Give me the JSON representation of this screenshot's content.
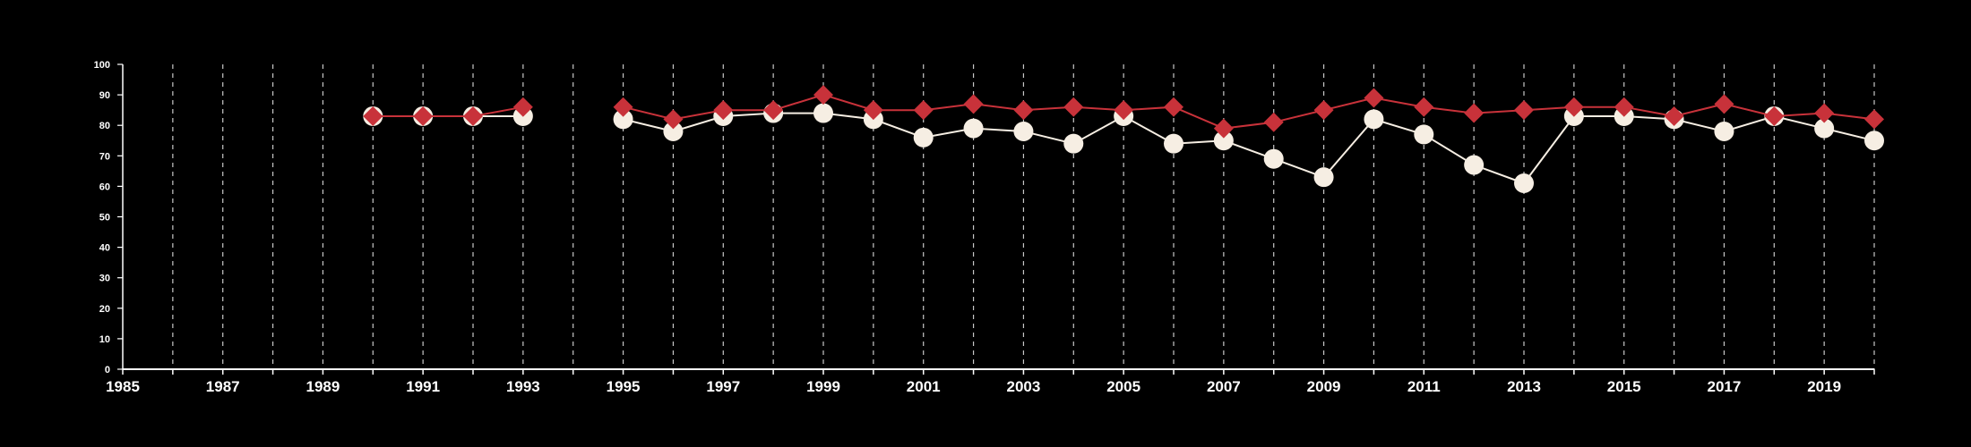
{
  "chart_data": {
    "type": "line",
    "title": "",
    "xlabel": "",
    "ylabel": "",
    "xlim": [
      1985,
      2020
    ],
    "ylim": [
      0,
      100
    ],
    "x_ticks": [
      1985,
      1987,
      1989,
      1991,
      1993,
      1995,
      1997,
      1999,
      2001,
      2003,
      2005,
      2007,
      2009,
      2011,
      2013,
      2015,
      2017,
      2019
    ],
    "y_ticks": [
      0,
      10,
      20,
      30,
      40,
      50,
      60,
      70,
      80,
      90,
      100
    ],
    "grid": "vertical dashed lines at every year",
    "series": [
      {
        "marker": "circle",
        "color": "#f6eee3",
        "points": [
          [
            1990,
            83
          ],
          [
            1991,
            83
          ],
          [
            1992,
            83
          ],
          [
            1993,
            83
          ],
          [
            1995,
            82
          ],
          [
            1996,
            78
          ],
          [
            1997,
            83
          ],
          [
            1998,
            84
          ],
          [
            1999,
            84
          ],
          [
            2000,
            82
          ],
          [
            2001,
            76
          ],
          [
            2002,
            79
          ],
          [
            2003,
            78
          ],
          [
            2004,
            74
          ],
          [
            2005,
            83
          ],
          [
            2006,
            74
          ],
          [
            2007,
            75
          ],
          [
            2008,
            69
          ],
          [
            2009,
            63
          ],
          [
            2010,
            82
          ],
          [
            2011,
            77
          ],
          [
            2012,
            67
          ],
          [
            2013,
            61
          ],
          [
            2014,
            83
          ],
          [
            2015,
            83
          ],
          [
            2016,
            82
          ],
          [
            2017,
            78
          ],
          [
            2018,
            83
          ],
          [
            2019,
            79
          ],
          [
            2020,
            75
          ]
        ]
      },
      {
        "marker": "diamond",
        "color": "#c8323a",
        "points": [
          [
            1990,
            83
          ],
          [
            1991,
            83
          ],
          [
            1992,
            83
          ],
          [
            1993,
            86
          ],
          [
            1995,
            86
          ],
          [
            1996,
            82
          ],
          [
            1997,
            85
          ],
          [
            1998,
            85
          ],
          [
            1999,
            90
          ],
          [
            2000,
            85
          ],
          [
            2001,
            85
          ],
          [
            2002,
            87
          ],
          [
            2003,
            85
          ],
          [
            2004,
            86
          ],
          [
            2005,
            85
          ],
          [
            2006,
            86
          ],
          [
            2007,
            79
          ],
          [
            2008,
            81
          ],
          [
            2009,
            85
          ],
          [
            2010,
            89
          ],
          [
            2011,
            86
          ],
          [
            2012,
            84
          ],
          [
            2013,
            85
          ],
          [
            2014,
            86
          ],
          [
            2015,
            86
          ],
          [
            2016,
            83
          ],
          [
            2017,
            87
          ],
          [
            2018,
            83
          ],
          [
            2019,
            84
          ],
          [
            2020,
            82
          ]
        ]
      }
    ]
  }
}
